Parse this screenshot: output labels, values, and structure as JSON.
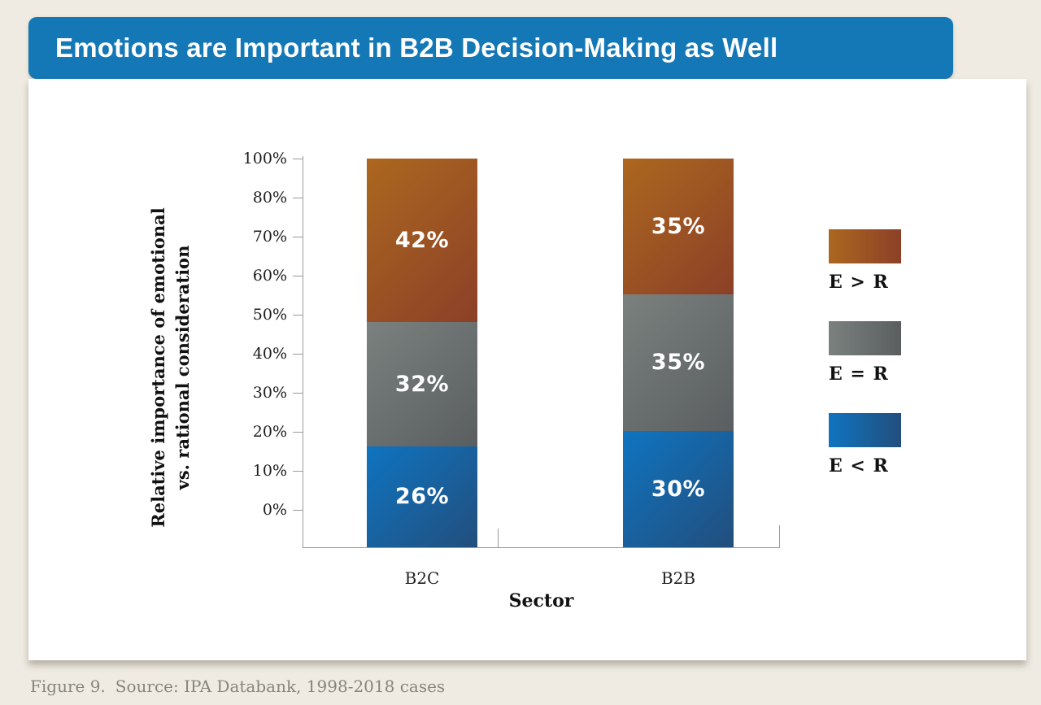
{
  "banner": {
    "title": "Emotions are Important in B2B Decision-Making as Well",
    "background_color": "#1478B7",
    "text_color": "#FFFFFF"
  },
  "chart_data": {
    "type": "bar",
    "stacked": true,
    "title": "Emotions are Important in B2B Decision-Making as Well",
    "categories": [
      "B2C",
      "B2B"
    ],
    "series": [
      {
        "name": "E > R",
        "values": [
          42,
          35
        ],
        "color_start": "#AC671F",
        "color_end": "#8B4027"
      },
      {
        "name": "E = R",
        "values": [
          32,
          35
        ],
        "color_start": "#7A817E",
        "color_end": "#5A5E60"
      },
      {
        "name": "E < R",
        "values": [
          26,
          30
        ],
        "color_start": "#0F74C0",
        "color_end": "#224E7D"
      }
    ],
    "value_suffix": "%",
    "x_axis": {
      "label": "Sector"
    },
    "y_axis": {
      "label_line1": "Relative importance of emotional",
      "label_line2": "vs. rational consideration",
      "tick_labels": [
        "100%",
        "80%",
        "70%",
        "60%",
        "50%",
        "40%",
        "30%",
        "20%",
        "10%",
        "0%"
      ]
    },
    "legend": {
      "position": "right",
      "entries": [
        "E > R",
        "E = R",
        "E < R"
      ]
    },
    "axis_color": "#9A9A9A",
    "grid": false
  },
  "caption": {
    "figure_label": "Figure 9.",
    "source_text": "Source: IPA Databank, 1998-2018 cases"
  },
  "theme": {
    "page_background": "#EFEBE2",
    "card_background": "#FFFFFF",
    "caption_color": "#85857E",
    "text_color": "#1C1C1C",
    "bar_label_color": "#FFFFFF"
  }
}
